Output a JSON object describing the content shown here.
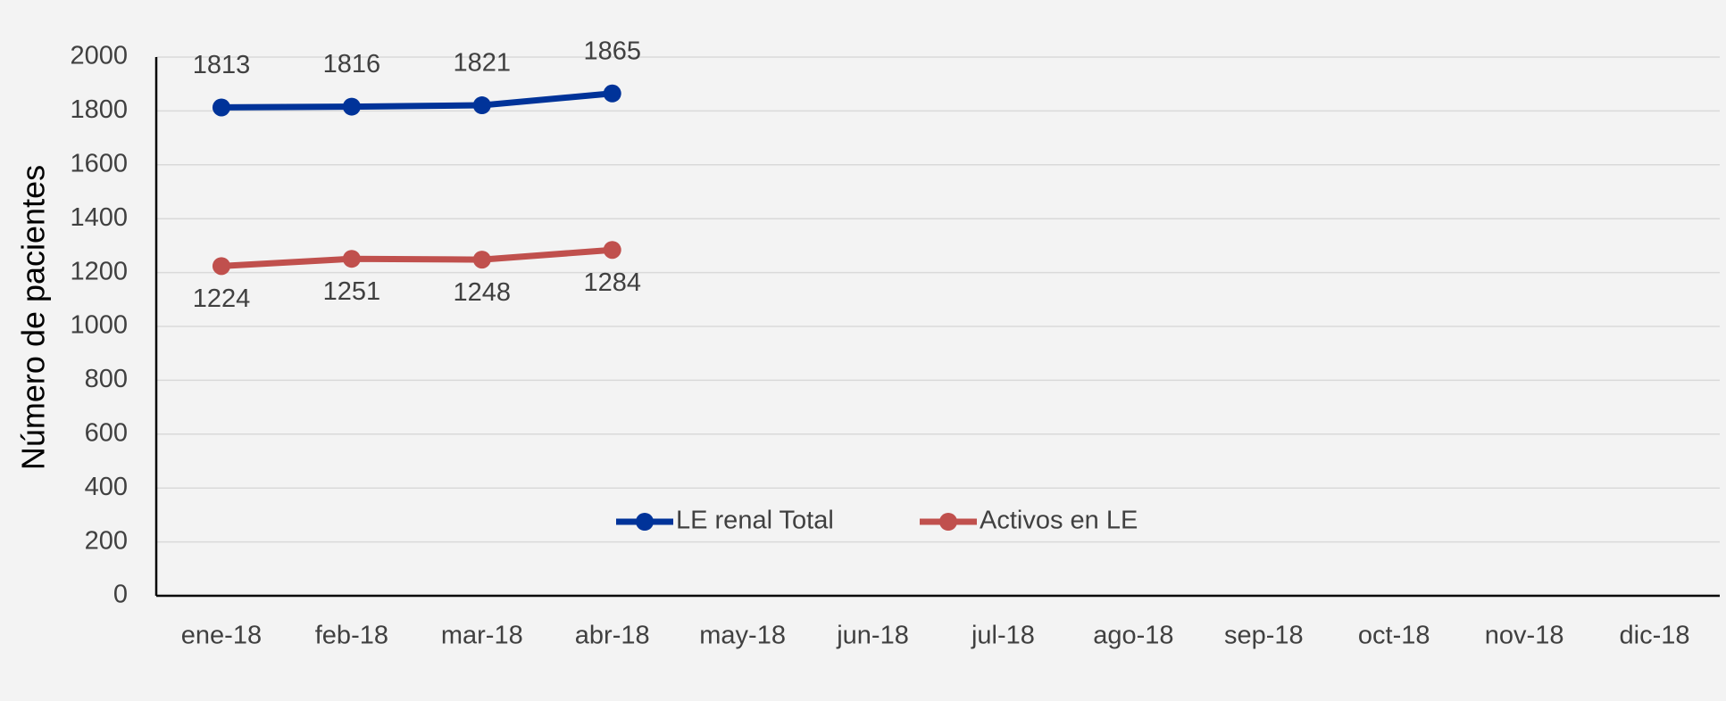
{
  "chart_data": {
    "type": "line",
    "y_axis_label": "Número de pacientes",
    "categories": [
      "ene-18",
      "feb-18",
      "mar-18",
      "abr-18",
      "may-18",
      "jun-18",
      "jul-18",
      "ago-18",
      "sep-18",
      "oct-18",
      "nov-18",
      "dic-18"
    ],
    "series": [
      {
        "name": "LE renal Total",
        "color": "#003399",
        "values": [
          1813,
          1816,
          1821,
          1865,
          null,
          null,
          null,
          null,
          null,
          null,
          null,
          null
        ]
      },
      {
        "name": "Activos en LE",
        "color": "#c0504d",
        "values": [
          1224,
          1251,
          1248,
          1284,
          null,
          null,
          null,
          null,
          null,
          null,
          null,
          null
        ]
      }
    ],
    "ylim": [
      0,
      2000
    ],
    "yticks": [
      0,
      200,
      400,
      600,
      800,
      1000,
      1200,
      1400,
      1600,
      1800,
      2000
    ],
    "grid": true,
    "legend": "center"
  }
}
